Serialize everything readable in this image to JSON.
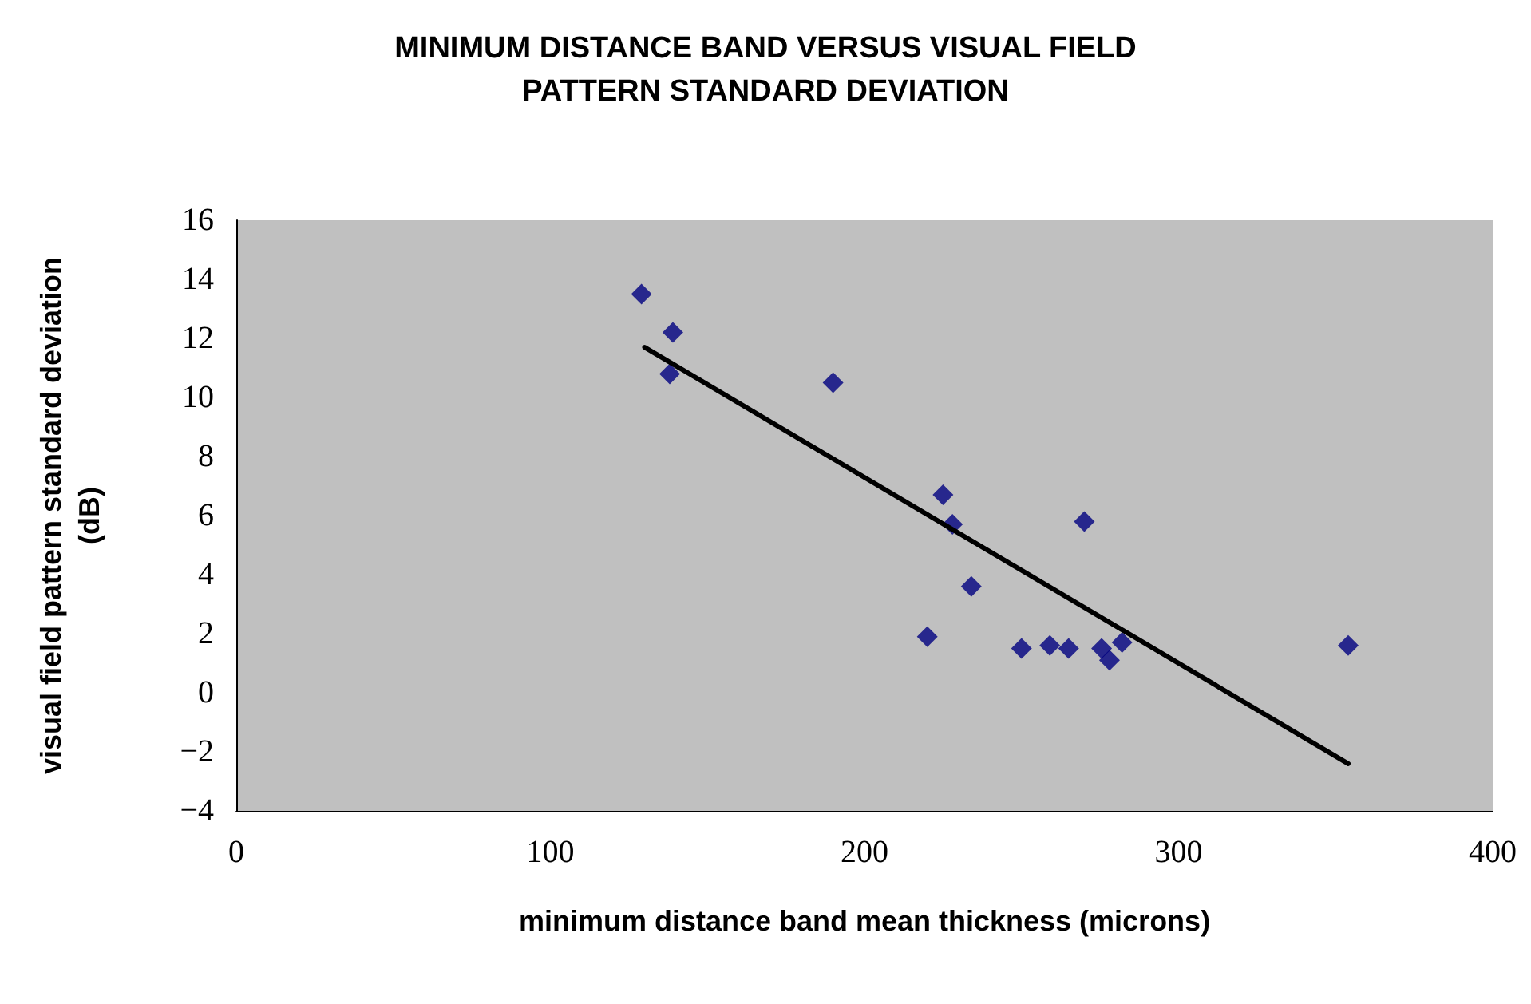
{
  "chart_data": {
    "type": "scatter",
    "title": "MINIMUM DISTANCE BAND VERSUS VISUAL FIELD\nPATTERN STANDARD DEVIATION",
    "xlabel": "minimum distance band mean thickness (microns)",
    "ylabel": "visual field pattern standard deviation\n(dB)",
    "marker": "diamond",
    "grid": false,
    "xlim": [
      0,
      400
    ],
    "xticks": [
      0,
      100,
      200,
      300,
      400
    ],
    "ylim": [
      -4,
      16
    ],
    "yticks": [
      -4,
      -2,
      0,
      2,
      4,
      6,
      8,
      10,
      12,
      14,
      16
    ],
    "series": [
      {
        "color": "#000080",
        "x": [
          129,
          139,
          138,
          190,
          225,
          228,
          234,
          220,
          250,
          259,
          265,
          270,
          275.5,
          278,
          282,
          354
        ],
        "values": [
          13.5,
          12.2,
          10.8,
          10.5,
          6.7,
          5.7,
          3.6,
          1.9,
          1.5,
          1.6,
          1.5,
          5.8,
          1.5,
          1.1,
          1.7,
          1.6
        ]
      },
      {
        "type": "line",
        "marker": "none",
        "color": "#000000",
        "x": [
          130,
          354
        ],
        "values": [
          11.7,
          -2.4
        ]
      }
    ]
  }
}
